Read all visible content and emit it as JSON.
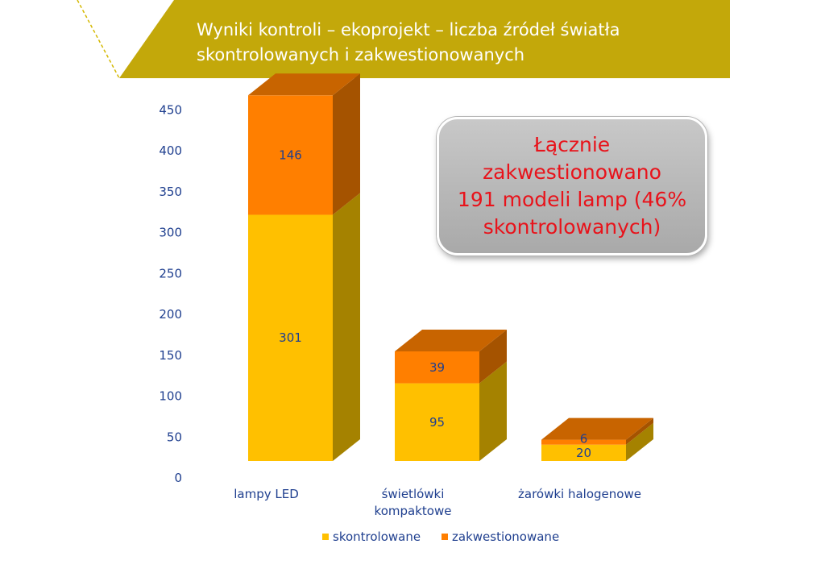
{
  "slide": {
    "title_line1": "Wyniki kontroli – ekoprojekt – liczba źródeł światła",
    "title_line2": "skontrolowanych i zakwestionowanych",
    "colors": {
      "banner": "#c3a80a",
      "dashed_line": "#d4b800"
    }
  },
  "callout": {
    "lines": [
      "Łącznie",
      "zakwestionowano",
      "191 modeli lamp (46%",
      "skontrolowanych)"
    ],
    "text_color": "#e8131b"
  },
  "chart_data": {
    "type": "bar",
    "stacked": true,
    "three_d": true,
    "categories": [
      [
        "lampy LED"
      ],
      [
        "świetlówki",
        "kompaktowe"
      ],
      [
        "żarówki halogenowe"
      ]
    ],
    "series": [
      {
        "name": "skontrolowane",
        "values": [
          301,
          95,
          20
        ],
        "color": "#ffc000",
        "side_color": "#a58200",
        "top_color": "#c28f00"
      },
      {
        "name": "zakwestionowane",
        "values": [
          146,
          39,
          6
        ],
        "color": "#ff7f00",
        "side_color": "#a55300",
        "top_color": "#c86400"
      }
    ],
    "yticks": [
      0,
      50,
      100,
      150,
      200,
      250,
      300,
      350,
      400,
      450
    ],
    "ylim": [
      0,
      450
    ],
    "grid": false,
    "legend_position": "bottom",
    "label_color": "#1f3f8f"
  }
}
